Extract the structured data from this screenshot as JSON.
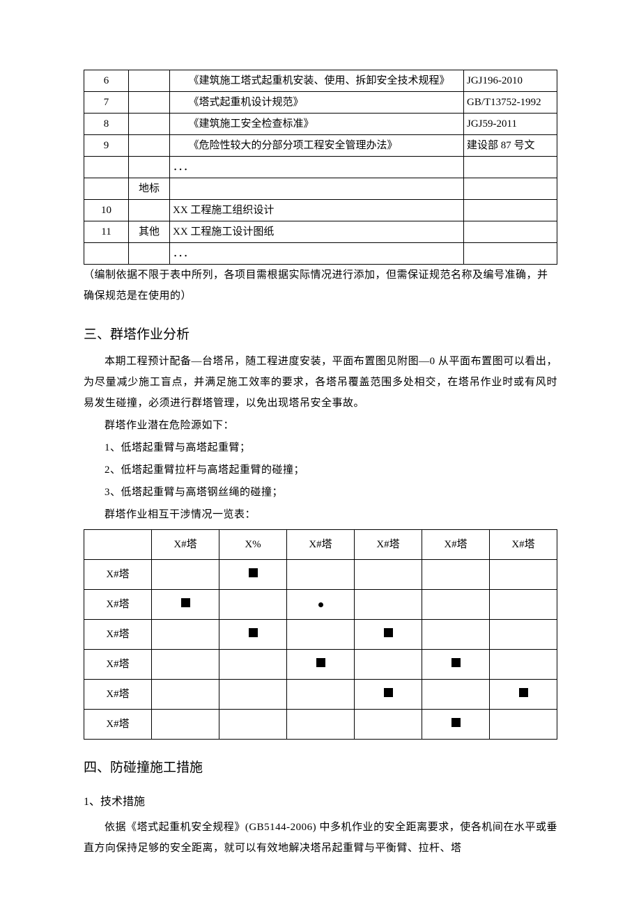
{
  "table1": {
    "rows": [
      {
        "num": "6",
        "cat": "",
        "name": "　　《建筑施工塔式起重机安装、使用、拆卸安全技术规程》",
        "code": "JGJ196-2010"
      },
      {
        "num": "7",
        "cat": "",
        "name": "　　《塔式起重机设计规范》",
        "code": "GB/T13752-1992"
      },
      {
        "num": "8",
        "cat": "",
        "name": "　　《建筑施工安全检查标准》",
        "code": "JGJ59-2011"
      },
      {
        "num": "9",
        "cat": "",
        "name": "　　《危险性较大的分部分项工程安全管理办法》",
        "code": "建设部 87 号文"
      },
      {
        "num": "",
        "cat": "",
        "name": "．．．",
        "code": ""
      },
      {
        "num": "",
        "cat": "地标",
        "name": "",
        "code": ""
      },
      {
        "num": "10",
        "cat": "",
        "name": "XX 工程施工组织设计",
        "code": ""
      },
      {
        "num": "11",
        "cat": "其他",
        "name": "XX 工程施工设计图纸",
        "code": ""
      },
      {
        "num": "",
        "cat": "",
        "name": "．．．",
        "code": ""
      }
    ]
  },
  "note": "（编制依据不限于表中所列，各项目需根据实际情况进行添加，但需保证规范名称及编号准确，并确保规范是在使用的）",
  "section3": {
    "title": "三、群塔作业分析",
    "para1": "本期工程预计配备—台塔吊，随工程进度安装，平面布置图见附图—0 从平面布置图可以看出，为尽量减少施工盲点，并满足施工效率的要求，各塔吊覆盖范围多处相交，在塔吊作业时或有风时易发生碰撞，必须进行群塔管理，以免出现塔吊安全事故。",
    "line_intro": "群塔作业潜在危险源如下：",
    "li1": "1、低塔起重臂与高塔起重臂；",
    "li2": "2、低塔起重臂拉杆与高塔起重臂的碰撞；",
    "li3": "3、低塔起重臂与高塔钢丝绳的碰撞；",
    "table2_title": "群塔作业相互干涉情况一览表：",
    "table2": {
      "cols": [
        "X#塔",
        "X%",
        "X#塔",
        "X#塔",
        "X#塔",
        "X#塔"
      ],
      "rows": [
        {
          "label": "X#塔",
          "cells": [
            "",
            "sq",
            "",
            "",
            "",
            ""
          ]
        },
        {
          "label": "X#塔",
          "cells": [
            "sq",
            "",
            "dot",
            "",
            "",
            ""
          ]
        },
        {
          "label": "X#塔",
          "cells": [
            "",
            "sq",
            "",
            "sq",
            "",
            ""
          ]
        },
        {
          "label": "X#塔",
          "cells": [
            "",
            "",
            "sq",
            "",
            "sq",
            ""
          ]
        },
        {
          "label": "X#塔",
          "cells": [
            "",
            "",
            "",
            "sq",
            "",
            "sq"
          ]
        },
        {
          "label": "X#塔",
          "cells": [
            "",
            "",
            "",
            "",
            "sq",
            ""
          ]
        }
      ]
    }
  },
  "section4": {
    "title": "四、防碰撞施工措施",
    "sub1": "1、技术措施",
    "para": "依据《塔式起重机安全规程》(GB5144-2006) 中多机作业的安全距离要求，使各机间在水平或垂直方向保持足够的安全距离，就可以有效地解决塔吊起重臂与平衡臂、拉杆、塔"
  }
}
